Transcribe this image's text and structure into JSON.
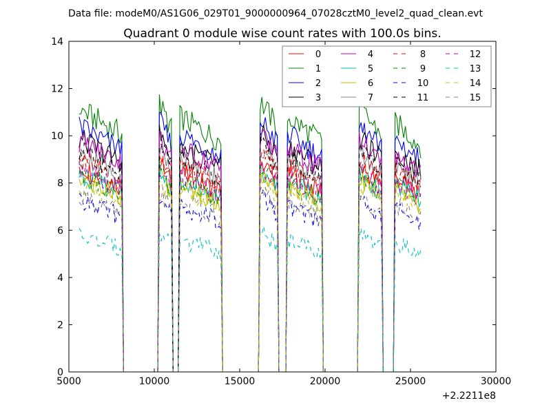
{
  "chart_data": {
    "type": "line",
    "suptitle": "Data file: modeM0/AS1G06_029T01_9000000964_07028cztM0_level2_quad_clean.evt",
    "title": "Quadrant 0 module wise count rates with 100.0s bins.",
    "xlabel": "",
    "ylabel": "",
    "x_offset_label": "+2.2211e8",
    "xlim": [
      5000,
      30000
    ],
    "ylim": [
      0,
      14
    ],
    "xticks": [
      5000,
      10000,
      15000,
      20000,
      25000,
      30000
    ],
    "yticks": [
      0,
      2,
      4,
      6,
      8,
      10,
      12,
      14
    ],
    "bin_size": 100,
    "x_range": [
      5600,
      25600
    ],
    "good_time_segments": [
      [
        5600,
        8100
      ],
      [
        10300,
        11000
      ],
      [
        11500,
        13900
      ],
      [
        16200,
        17200
      ],
      [
        17800,
        19800
      ],
      [
        22000,
        23300
      ],
      [
        24100,
        25600
      ]
    ],
    "segment_scale": [
      1.0,
      1.02,
      0.97,
      1.03,
      0.97,
      1.0,
      0.95
    ],
    "legend_position": "top-right",
    "legend_columns": 4,
    "series": [
      {
        "name": "0",
        "color": "#ff0000",
        "dash": "solid",
        "mean_rate": 8.3
      },
      {
        "name": "1",
        "color": "#008000",
        "dash": "solid",
        "mean_rate": 10.6
      },
      {
        "name": "2",
        "color": "#0000ff",
        "dash": "solid",
        "mean_rate": 9.9
      },
      {
        "name": "3",
        "color": "#000000",
        "dash": "solid",
        "mean_rate": 9.4
      },
      {
        "name": "4",
        "color": "#bf00bf",
        "dash": "solid",
        "mean_rate": 9.3
      },
      {
        "name": "5",
        "color": "#00bfbf",
        "dash": "solid",
        "mean_rate": 8.0
      },
      {
        "name": "6",
        "color": "#bfbf00",
        "dash": "solid",
        "mean_rate": 7.8
      },
      {
        "name": "7",
        "color": "#808080",
        "dash": "solid",
        "mean_rate": 8.8
      },
      {
        "name": "8",
        "color": "#ff0000",
        "dash": "dashed",
        "mean_rate": 8.6
      },
      {
        "name": "9",
        "color": "#008000",
        "dash": "dashed",
        "mean_rate": 8.0
      },
      {
        "name": "10",
        "color": "#0000ff",
        "dash": "dashed",
        "mean_rate": 6.9
      },
      {
        "name": "11",
        "color": "#000000",
        "dash": "dashed",
        "mean_rate": 8.9
      },
      {
        "name": "12",
        "color": "#bf00bf",
        "dash": "dashed",
        "mean_rate": 8.1
      },
      {
        "name": "13",
        "color": "#00bfbf",
        "dash": "dashed",
        "mean_rate": 5.5
      },
      {
        "name": "14",
        "color": "#bfbf00",
        "dash": "dashed",
        "mean_rate": 7.6
      },
      {
        "name": "15",
        "color": "#808080",
        "dash": "dashed",
        "mean_rate": 7.1
      }
    ]
  }
}
